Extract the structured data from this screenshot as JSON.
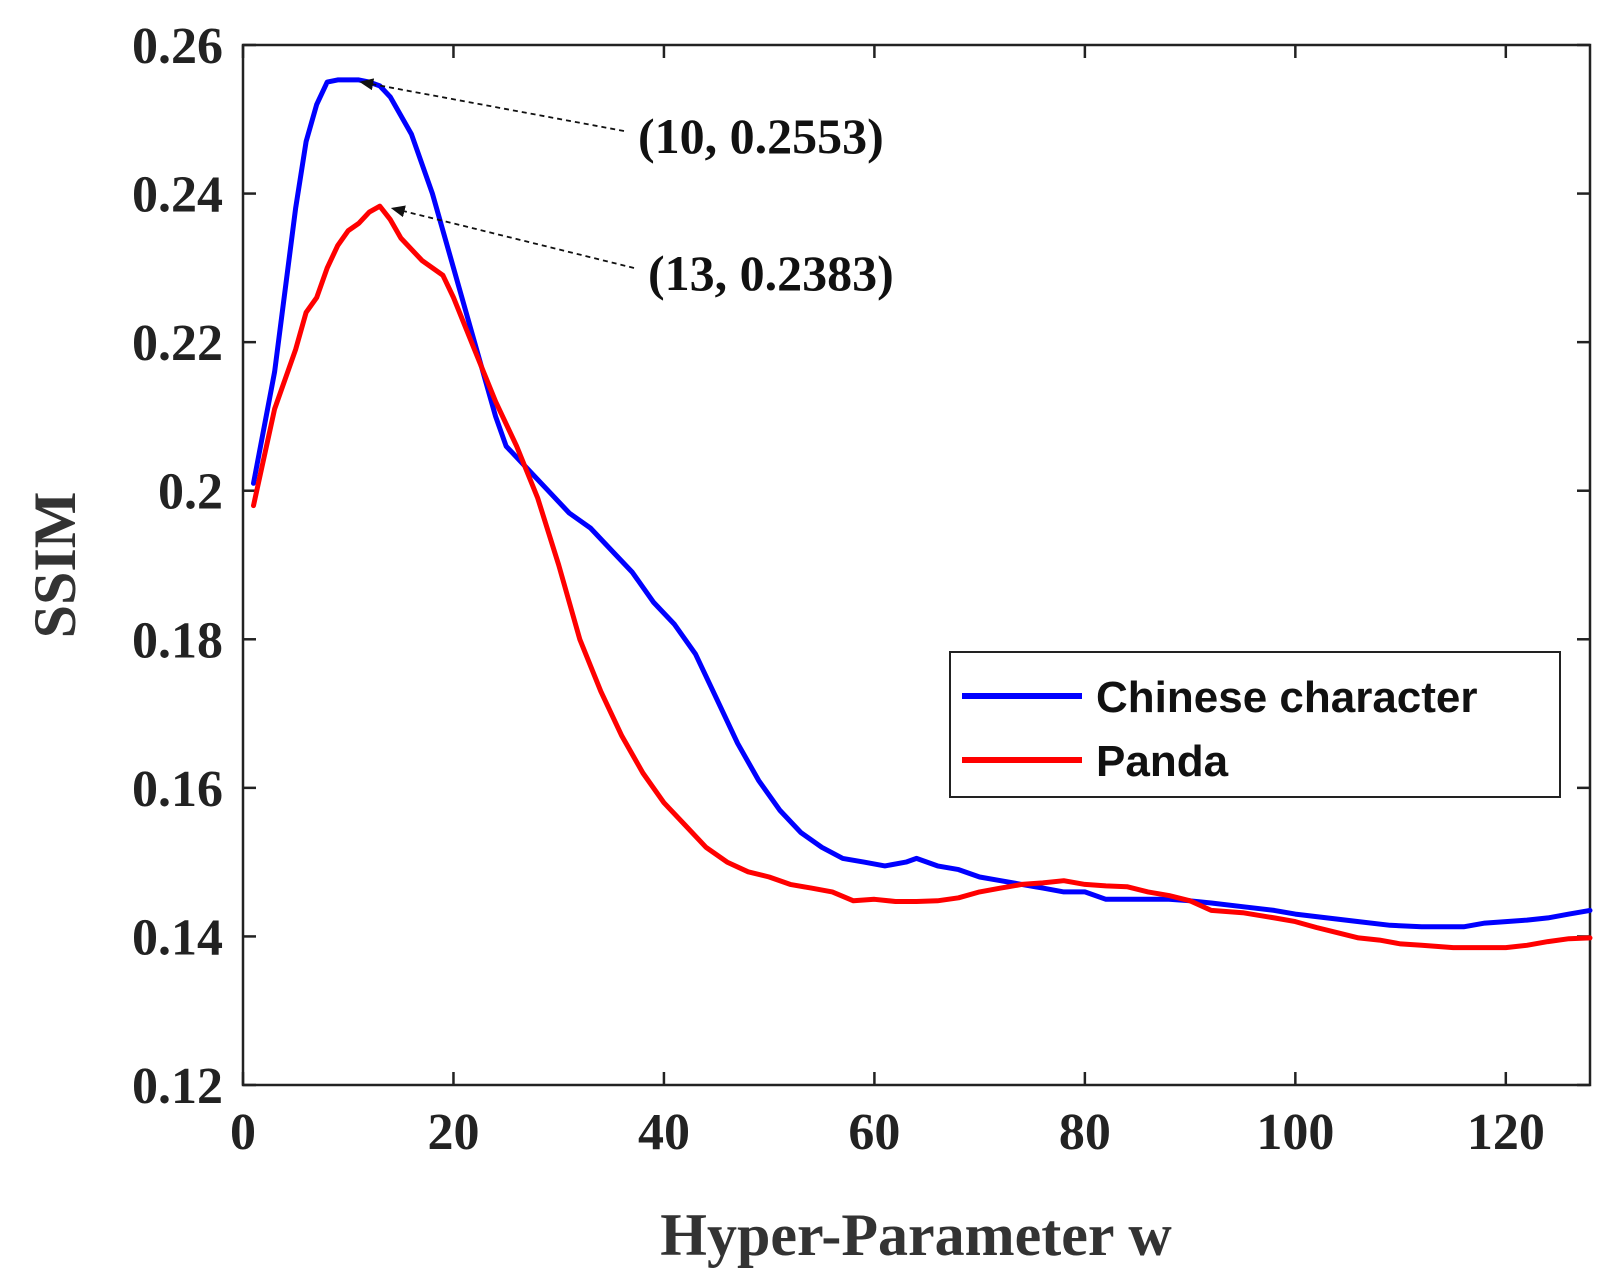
{
  "chart_data": {
    "type": "line",
    "title": "",
    "xlabel": "Hyper-Parameter w",
    "ylabel": "SSIM",
    "xlim": [
      0,
      128
    ],
    "ylim": [
      0.12,
      0.26
    ],
    "xticks": [
      0,
      20,
      40,
      60,
      80,
      100,
      120
    ],
    "xtick_labels": [
      "0",
      "20",
      "40",
      "60",
      "80",
      "100",
      "120"
    ],
    "yticks": [
      0.12,
      0.14,
      0.16,
      0.18,
      0.2,
      0.22,
      0.24,
      0.26
    ],
    "ytick_labels": [
      "0.12",
      "0.14",
      "0.16",
      "0.18",
      "0.2",
      "0.22",
      "0.24",
      "0.26"
    ],
    "grid": false,
    "legend_position": "center-right",
    "series": [
      {
        "name": "Chinese character",
        "color": "#0000ff",
        "x": [
          1,
          3,
          5,
          6,
          7,
          8,
          9,
          10,
          11,
          12,
          13,
          14,
          16,
          18,
          20,
          22,
          24,
          25,
          27,
          29,
          31,
          33,
          35,
          37,
          39,
          41,
          43,
          45,
          47,
          49,
          51,
          53,
          55,
          57,
          59,
          61,
          63,
          64,
          66,
          68,
          70,
          72,
          74,
          76,
          78,
          80,
          82,
          85,
          88,
          90,
          92,
          95,
          98,
          100,
          103,
          106,
          109,
          112,
          116,
          118,
          120,
          122,
          124,
          126,
          128
        ],
        "y": [
          0.201,
          0.216,
          0.238,
          0.247,
          0.252,
          0.255,
          0.2553,
          0.2553,
          0.2553,
          0.255,
          0.2545,
          0.253,
          0.248,
          0.24,
          0.23,
          0.22,
          0.21,
          0.206,
          0.203,
          0.2,
          0.197,
          0.195,
          0.192,
          0.189,
          0.185,
          0.182,
          0.178,
          0.172,
          0.166,
          0.161,
          0.157,
          0.154,
          0.152,
          0.1505,
          0.15,
          0.1495,
          0.15,
          0.1505,
          0.1495,
          0.149,
          0.148,
          0.1475,
          0.147,
          0.1465,
          0.146,
          0.146,
          0.145,
          0.145,
          0.145,
          0.1448,
          0.1445,
          0.144,
          0.1435,
          0.143,
          0.1425,
          0.142,
          0.1415,
          0.1413,
          0.1413,
          0.1418,
          0.142,
          0.1422,
          0.1425,
          0.143,
          0.1435
        ]
      },
      {
        "name": "Panda",
        "color": "#ff0000",
        "x": [
          1,
          3,
          5,
          6,
          7,
          8,
          9,
          10,
          11,
          12,
          13,
          14,
          15,
          17,
          19,
          20,
          22,
          24,
          26,
          28,
          30,
          32,
          34,
          36,
          38,
          40,
          42,
          44,
          46,
          48,
          50,
          52,
          54,
          56,
          58,
          60,
          62,
          64,
          66,
          68,
          70,
          72,
          74,
          76,
          78,
          80,
          82,
          84,
          86,
          88,
          90,
          92,
          95,
          98,
          100,
          102,
          104,
          106,
          108,
          110,
          112,
          115,
          118,
          120,
          122,
          124,
          126,
          128
        ],
        "y": [
          0.198,
          0.211,
          0.219,
          0.224,
          0.226,
          0.23,
          0.233,
          0.235,
          0.236,
          0.2375,
          0.2383,
          0.2365,
          0.234,
          0.231,
          0.229,
          0.226,
          0.219,
          0.212,
          0.206,
          0.199,
          0.19,
          0.18,
          0.173,
          0.167,
          0.162,
          0.158,
          0.155,
          0.152,
          0.15,
          0.1487,
          0.148,
          0.147,
          0.1465,
          0.146,
          0.1448,
          0.145,
          0.1447,
          0.1447,
          0.1448,
          0.1452,
          0.146,
          0.1465,
          0.147,
          0.1472,
          0.1475,
          0.147,
          0.1468,
          0.1467,
          0.146,
          0.1455,
          0.1448,
          0.1435,
          0.1432,
          0.1425,
          0.142,
          0.1412,
          0.1405,
          0.1398,
          0.1395,
          0.139,
          0.1388,
          0.1385,
          0.1385,
          0.1385,
          0.1388,
          0.1393,
          0.1397,
          0.1398
        ]
      }
    ],
    "annotations": [
      {
        "text": "(10, 0.2553)",
        "x": 10,
        "y": 0.2553
      },
      {
        "text": "(13, 0.2383)",
        "x": 13,
        "y": 0.2383
      }
    ]
  }
}
